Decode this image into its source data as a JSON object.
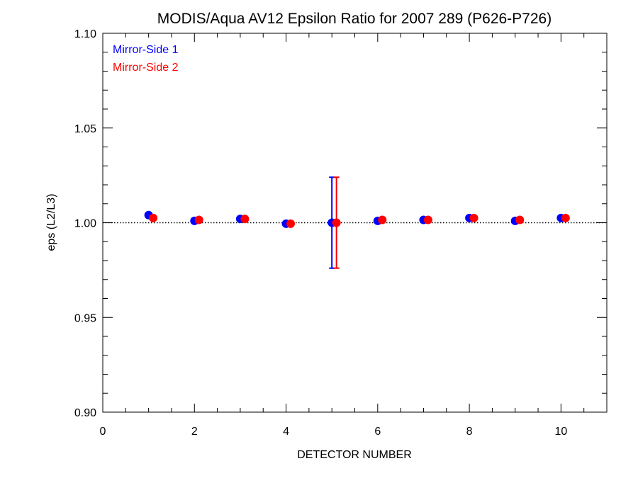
{
  "chart_data": {
    "type": "scatter",
    "title": "MODIS/Aqua AV12 Epsilon Ratio for 2007 289 (P626-P726)",
    "xlabel": "DETECTOR NUMBER",
    "ylabel": "eps (L2/L3)",
    "xlim": [
      0,
      11
    ],
    "ylim": [
      0.9,
      1.1
    ],
    "x_ticks": [
      0,
      2,
      4,
      6,
      8,
      10
    ],
    "x_tick_labels": [
      "0",
      "2",
      "4",
      "6",
      "8",
      "10"
    ],
    "y_ticks": [
      0.9,
      0.95,
      1.0,
      1.05,
      1.1
    ],
    "y_tick_labels": [
      "0.90",
      "0.95",
      "1.00",
      "1.05",
      "1.10"
    ],
    "reference_line": {
      "y": 1.0,
      "style": "dotted"
    },
    "legend_position": "top-left",
    "series": [
      {
        "name": "Mirror-Side 1",
        "color": "#0000ff",
        "x": [
          1,
          2,
          3,
          4,
          5,
          6,
          7,
          8,
          9,
          10
        ],
        "y": [
          1.004,
          1.001,
          1.002,
          0.9995,
          1.0,
          1.001,
          1.0015,
          1.0025,
          1.001,
          1.0025
        ],
        "error_bars": [
          {
            "x": 5,
            "low": 0.976,
            "high": 1.024
          }
        ]
      },
      {
        "name": "Mirror-Side 2",
        "color": "#ff0000",
        "x": [
          1.1,
          2.1,
          3.1,
          4.1,
          5.1,
          6.1,
          7.1,
          8.1,
          9.1,
          10.1
        ],
        "y": [
          1.0025,
          1.0015,
          1.002,
          0.9995,
          1.0,
          1.0015,
          1.0015,
          1.0025,
          1.0015,
          1.0025
        ],
        "error_bars": [
          {
            "x": 5.1,
            "low": 0.976,
            "high": 1.024
          }
        ]
      }
    ]
  }
}
